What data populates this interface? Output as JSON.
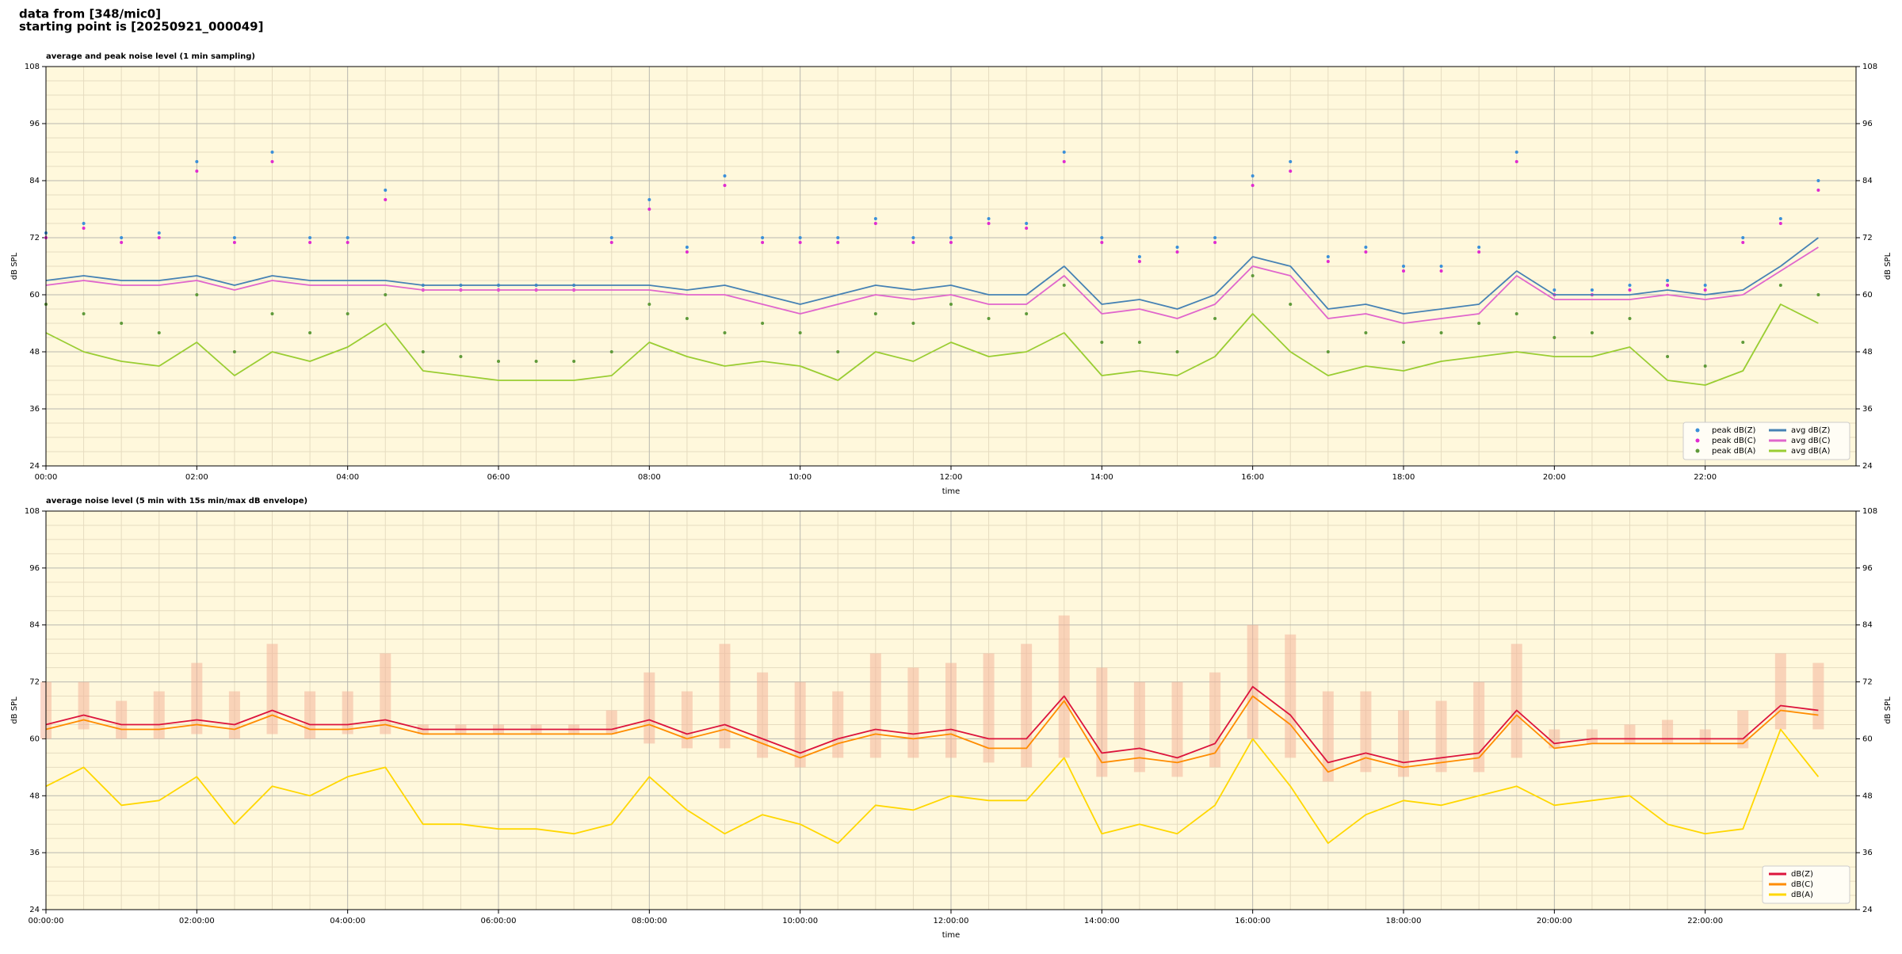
{
  "header": {
    "source": "data from [348/mic0]",
    "start": "starting point is [20250921_000049]"
  },
  "chart_data": [
    {
      "type": "line",
      "title": "average and peak noise level (1 min sampling)",
      "xlabel": "time",
      "ylabel": "dB SPL",
      "background": "#fff8dc",
      "grid": true,
      "legend": "lower right",
      "legend_columns": 2,
      "xlim": [
        0,
        1440
      ],
      "xticks": [
        {
          "value": 0,
          "label": "00:00"
        },
        {
          "value": 120,
          "label": "02:00"
        },
        {
          "value": 240,
          "label": "04:00"
        },
        {
          "value": 360,
          "label": "06:00"
        },
        {
          "value": 480,
          "label": "08:00"
        },
        {
          "value": 600,
          "label": "10:00"
        },
        {
          "value": 720,
          "label": "12:00"
        },
        {
          "value": 840,
          "label": "14:00"
        },
        {
          "value": 960,
          "label": "16:00"
        },
        {
          "value": 1080,
          "label": "18:00"
        },
        {
          "value": 1200,
          "label": "20:00"
        },
        {
          "value": 1320,
          "label": "22:00"
        }
      ],
      "ylim": [
        24,
        108
      ],
      "yticks": [
        24,
        36,
        48,
        60,
        72,
        84,
        96,
        108
      ],
      "x": [
        0,
        30,
        60,
        90,
        120,
        150,
        180,
        210,
        240,
        270,
        300,
        330,
        360,
        390,
        420,
        450,
        480,
        510,
        540,
        570,
        600,
        630,
        660,
        690,
        720,
        750,
        780,
        810,
        840,
        870,
        900,
        930,
        960,
        990,
        1020,
        1050,
        1080,
        1110,
        1140,
        1170,
        1200,
        1230,
        1260,
        1290,
        1320,
        1350,
        1380,
        1410
      ],
      "series": [
        {
          "name": "peak dB(Z)",
          "kind": "scatter",
          "color": "#3a8fd9",
          "values": [
            73,
            75,
            72,
            73,
            88,
            72,
            90,
            72,
            72,
            82,
            62,
            62,
            62,
            62,
            62,
            72,
            80,
            70,
            85,
            72,
            72,
            72,
            76,
            72,
            72,
            76,
            75,
            90,
            72,
            68,
            70,
            72,
            85,
            88,
            68,
            70,
            66,
            66,
            70,
            90,
            61,
            61,
            62,
            63,
            62,
            72,
            76,
            84
          ]
        },
        {
          "name": "peak dB(C)",
          "kind": "scatter",
          "color": "#e02ad0",
          "values": [
            72,
            74,
            71,
            72,
            86,
            71,
            88,
            71,
            71,
            80,
            61,
            61,
            61,
            61,
            61,
            71,
            78,
            69,
            83,
            71,
            71,
            71,
            75,
            71,
            71,
            75,
            74,
            88,
            71,
            67,
            69,
            71,
            83,
            86,
            67,
            69,
            65,
            65,
            69,
            88,
            60,
            60,
            61,
            62,
            61,
            71,
            75,
            82
          ]
        },
        {
          "name": "peak dB(A)",
          "kind": "scatter",
          "color": "#5f9a3a",
          "values": [
            58,
            56,
            54,
            52,
            60,
            48,
            56,
            52,
            56,
            60,
            48,
            47,
            46,
            46,
            46,
            48,
            58,
            55,
            52,
            54,
            52,
            48,
            56,
            54,
            58,
            55,
            56,
            62,
            50,
            50,
            48,
            55,
            64,
            58,
            48,
            52,
            50,
            52,
            54,
            56,
            51,
            52,
            55,
            47,
            45,
            50,
            62,
            60
          ]
        },
        {
          "name": "avg dB(Z)",
          "kind": "line",
          "color": "#4682b4",
          "values": [
            63,
            64,
            63,
            63,
            64,
            62,
            64,
            63,
            63,
            63,
            62,
            62,
            62,
            62,
            62,
            62,
            62,
            61,
            62,
            60,
            58,
            60,
            62,
            61,
            62,
            60,
            60,
            66,
            58,
            59,
            57,
            60,
            68,
            66,
            57,
            58,
            56,
            57,
            58,
            65,
            60,
            60,
            60,
            61,
            60,
            61,
            66,
            72
          ]
        },
        {
          "name": "avg dB(C)",
          "kind": "line",
          "color": "#e066cc",
          "values": [
            62,
            63,
            62,
            62,
            63,
            61,
            63,
            62,
            62,
            62,
            61,
            61,
            61,
            61,
            61,
            61,
            61,
            60,
            60,
            58,
            56,
            58,
            60,
            59,
            60,
            58,
            58,
            64,
            56,
            57,
            55,
            58,
            66,
            64,
            55,
            56,
            54,
            55,
            56,
            64,
            59,
            59,
            59,
            60,
            59,
            60,
            65,
            70
          ]
        },
        {
          "name": "avg dB(A)",
          "kind": "line",
          "color": "#9acd32",
          "values": [
            52,
            48,
            46,
            45,
            50,
            43,
            48,
            46,
            49,
            54,
            44,
            43,
            42,
            42,
            42,
            43,
            50,
            47,
            45,
            46,
            45,
            42,
            48,
            46,
            50,
            47,
            48,
            52,
            43,
            44,
            43,
            47,
            56,
            48,
            43,
            45,
            44,
            46,
            47,
            48,
            47,
            47,
            49,
            42,
            41,
            44,
            58,
            54
          ]
        }
      ]
    },
    {
      "type": "line",
      "title": "average noise level (5 min with 15s min/max dB envelope)",
      "xlabel": "time",
      "ylabel": "dB SPL",
      "background": "#fff8dc",
      "grid": true,
      "legend": "lower right",
      "legend_columns": 1,
      "xlim": [
        0,
        1440
      ],
      "xticks": [
        {
          "value": 0,
          "label": "00:00:00"
        },
        {
          "value": 120,
          "label": "02:00:00"
        },
        {
          "value": 240,
          "label": "04:00:00"
        },
        {
          "value": 360,
          "label": "06:00:00"
        },
        {
          "value": 480,
          "label": "08:00:00"
        },
        {
          "value": 600,
          "label": "10:00:00"
        },
        {
          "value": 720,
          "label": "12:00:00"
        },
        {
          "value": 840,
          "label": "14:00:00"
        },
        {
          "value": 960,
          "label": "16:00:00"
        },
        {
          "value": 1080,
          "label": "18:00:00"
        },
        {
          "value": 1200,
          "label": "20:00:00"
        },
        {
          "value": 1320,
          "label": "22:00:00"
        }
      ],
      "ylim": [
        24,
        108
      ],
      "yticks": [
        24,
        36,
        48,
        60,
        72,
        84,
        96,
        108
      ],
      "x": [
        0,
        30,
        60,
        90,
        120,
        150,
        180,
        210,
        240,
        270,
        300,
        330,
        360,
        390,
        420,
        450,
        480,
        510,
        540,
        570,
        600,
        630,
        660,
        690,
        720,
        750,
        780,
        810,
        840,
        870,
        900,
        930,
        960,
        990,
        1020,
        1050,
        1080,
        1110,
        1140,
        1170,
        1200,
        1230,
        1260,
        1290,
        1320,
        1350,
        1380,
        1410
      ],
      "envelope": {
        "color": "#f4b49a",
        "max": [
          72,
          72,
          68,
          70,
          76,
          70,
          80,
          70,
          70,
          78,
          63,
          63,
          63,
          63,
          63,
          66,
          74,
          70,
          80,
          74,
          72,
          70,
          78,
          75,
          76,
          78,
          80,
          86,
          75,
          72,
          72,
          74,
          84,
          82,
          70,
          70,
          66,
          68,
          72,
          80,
          62,
          62,
          63,
          64,
          62,
          66,
          78,
          76
        ],
        "min": [
          60,
          62,
          60,
          60,
          61,
          60,
          61,
          60,
          61,
          61,
          61,
          61,
          61,
          61,
          61,
          61,
          59,
          58,
          58,
          56,
          54,
          56,
          56,
          56,
          56,
          55,
          54,
          56,
          52,
          53,
          52,
          54,
          60,
          56,
          51,
          53,
          52,
          53,
          53,
          56,
          58,
          59,
          59,
          59,
          59,
          58,
          62,
          62
        ]
      },
      "series": [
        {
          "name": "dB(Z)",
          "kind": "line",
          "color": "#dc143c",
          "values": [
            63,
            65,
            63,
            63,
            64,
            63,
            66,
            63,
            63,
            64,
            62,
            62,
            62,
            62,
            62,
            62,
            64,
            61,
            63,
            60,
            57,
            60,
            62,
            61,
            62,
            60,
            60,
            69,
            57,
            58,
            56,
            59,
            71,
            65,
            55,
            57,
            55,
            56,
            57,
            66,
            59,
            60,
            60,
            60,
            60,
            60,
            67,
            66
          ]
        },
        {
          "name": "dB(C)",
          "kind": "line",
          "color": "#ff8c00",
          "values": [
            62,
            64,
            62,
            62,
            63,
            62,
            65,
            62,
            62,
            63,
            61,
            61,
            61,
            61,
            61,
            61,
            63,
            60,
            62,
            59,
            56,
            59,
            61,
            60,
            61,
            58,
            58,
            68,
            55,
            56,
            55,
            57,
            69,
            63,
            53,
            56,
            54,
            55,
            56,
            65,
            58,
            59,
            59,
            59,
            59,
            59,
            66,
            65
          ]
        },
        {
          "name": "dB(A)",
          "kind": "line",
          "color": "#ffd700",
          "values": [
            50,
            54,
            46,
            47,
            52,
            42,
            50,
            48,
            52,
            54,
            42,
            42,
            41,
            41,
            40,
            42,
            52,
            45,
            40,
            44,
            42,
            38,
            46,
            45,
            48,
            47,
            47,
            56,
            40,
            42,
            40,
            46,
            60,
            50,
            38,
            44,
            47,
            46,
            48,
            50,
            46,
            47,
            48,
            42,
            40,
            41,
            62,
            52
          ]
        }
      ]
    }
  ]
}
